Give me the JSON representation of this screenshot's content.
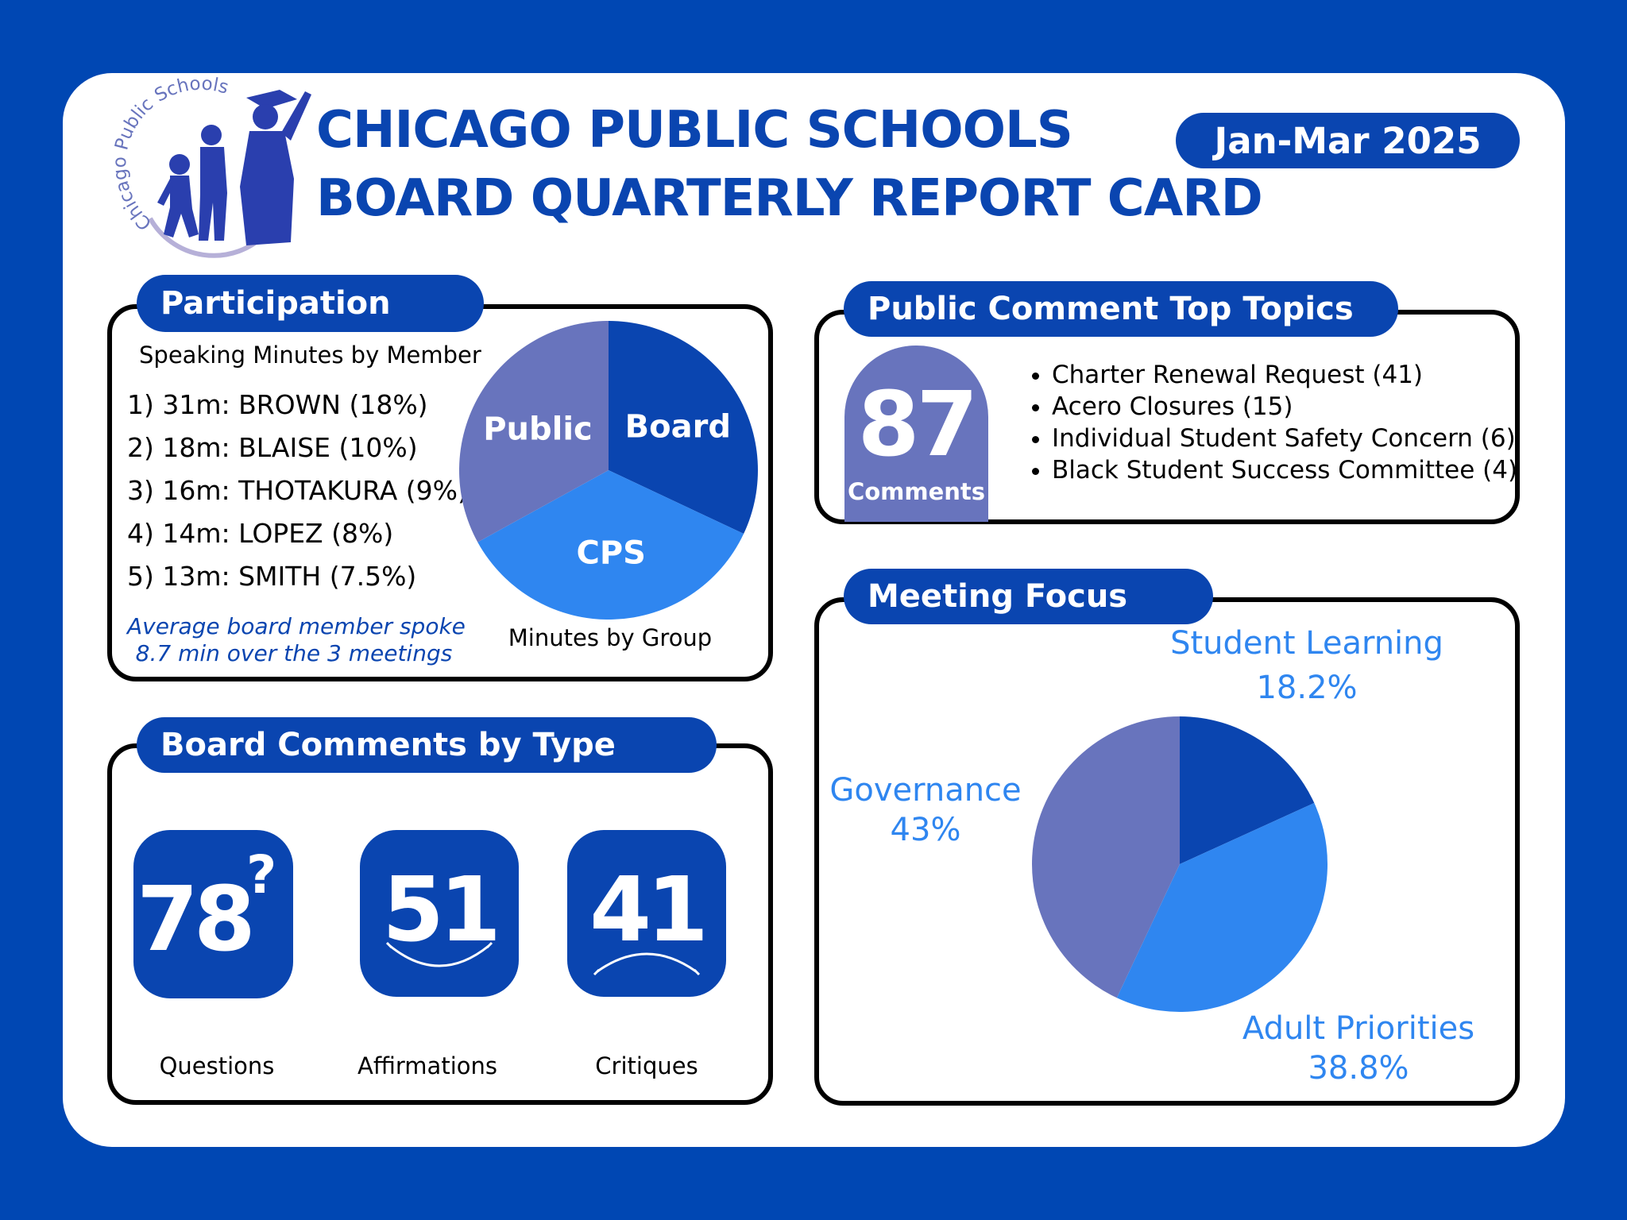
{
  "header": {
    "logo_text": "Chicago Public Schools",
    "title_line1": "CHICAGO PUBLIC SCHOOLS",
    "title_line2": "BOARD QUARTERLY REPORT CARD",
    "date_range": "Jan-Mar 2025"
  },
  "participation": {
    "heading": "Participation",
    "subheading": "Speaking Minutes by Member",
    "members": [
      "1) 31m: BROWN (18%)",
      "2) 18m: BLAISE (10%)",
      "3) 16m: THOTAKURA (9%)",
      "4) 14m: LOPEZ (8%)",
      "5) 13m: SMITH (7.5%)"
    ],
    "note_line1": "Average board member spoke",
    "note_line2": "8.7 min over the 3 meetings",
    "pie_caption": "Minutes by Group"
  },
  "topics": {
    "heading": "Public Comment Top Topics",
    "count": "87",
    "count_label": "Comments",
    "items": [
      "Charter Renewal Request (41)",
      "Acero Closures (15)",
      "Individual Student Safety Concern (6)",
      "Black Student Success Committee (4)"
    ]
  },
  "comments": {
    "heading": "Board Comments by Type",
    "questions": {
      "value": "78",
      "mark": "?",
      "label": "Questions",
      "icon": "question-mark-icon"
    },
    "affirmations": {
      "value": "51",
      "label": "Affirmations",
      "icon": "smile-icon"
    },
    "critiques": {
      "value": "41",
      "label": "Critiques",
      "icon": "frown-icon"
    }
  },
  "focus": {
    "heading": "Meeting Focus"
  },
  "colors": {
    "brand_blue": "#0a45b0",
    "light_blue": "#2f86f0",
    "purple": "#6874bd",
    "background": "#0047b3"
  },
  "chart_data": [
    {
      "type": "pie",
      "caption": "Minutes by Group",
      "slices": [
        {
          "label": "Board",
          "value": 32,
          "color": "#0a45b0"
        },
        {
          "label": "CPS",
          "value": 35,
          "color": "#2f86f0"
        },
        {
          "label": "Public",
          "value": 33,
          "color": "#6874bd"
        }
      ]
    },
    {
      "type": "pie",
      "title": "Meeting Focus",
      "slices": [
        {
          "label": "Student Learning",
          "value": 18.2,
          "display": "18.2%",
          "color": "#0a45b0"
        },
        {
          "label": "Adult Priorities",
          "value": 38.8,
          "display": "38.8%",
          "color": "#2f86f0"
        },
        {
          "label": "Governance",
          "value": 43,
          "display": "43%",
          "color": "#6874bd"
        }
      ]
    }
  ]
}
